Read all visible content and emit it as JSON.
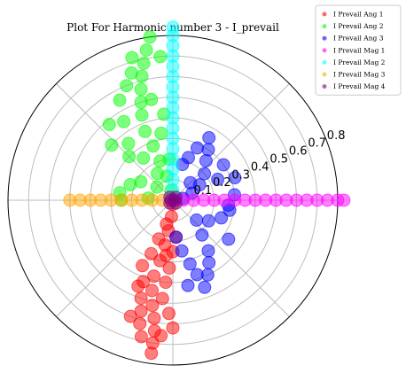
{
  "chart_data": {
    "type": "scatter",
    "subtype": "polar",
    "title": "Plot For Harmonic number 3 - I_prevail",
    "r_ticks": [
      "0.1",
      "0.2",
      "0.3",
      "0.4",
      "0.5",
      "0.6",
      "0.7",
      "0.8"
    ],
    "r_tick_values": [
      0.1,
      0.2,
      0.3,
      0.4,
      0.5,
      0.6,
      0.7,
      0.8
    ],
    "rlim": [
      0,
      0.8
    ],
    "grid": true,
    "legend_position": "top-right",
    "series": [
      {
        "name": "I Prevail Ang 1",
        "color": "#ff0000",
        "points": [
          [
            0.02,
            -93
          ],
          [
            0.08,
            -95
          ],
          [
            0.15,
            -98
          ],
          [
            0.22,
            -100
          ],
          [
            0.3,
            -102
          ],
          [
            0.38,
            -104
          ],
          [
            0.45,
            -103
          ],
          [
            0.52,
            -101
          ],
          [
            0.58,
            -99
          ],
          [
            0.64,
            -98
          ],
          [
            0.7,
            -98
          ],
          [
            0.75,
            -98
          ],
          [
            0.12,
            -105
          ],
          [
            0.2,
            -110
          ],
          [
            0.28,
            -112
          ],
          [
            0.35,
            -115
          ],
          [
            0.42,
            -110
          ],
          [
            0.5,
            -108
          ],
          [
            0.56,
            -106
          ],
          [
            0.62,
            -105
          ],
          [
            0.68,
            -103
          ],
          [
            0.25,
            -90
          ],
          [
            0.33,
            -93
          ],
          [
            0.4,
            -95
          ],
          [
            0.48,
            -96
          ],
          [
            0.55,
            -92
          ],
          [
            0.62,
            -90
          ],
          [
            0.18,
            -85
          ],
          [
            0.27,
            -97
          ],
          [
            0.45,
            -112
          ],
          [
            0.6,
            -110
          ],
          [
            0.66,
            -95
          ]
        ]
      },
      {
        "name": "I Prevail Ang 2",
        "color": "#00ff00",
        "points": [
          [
            0.05,
            100
          ],
          [
            0.12,
            104
          ],
          [
            0.2,
            108
          ],
          [
            0.28,
            110
          ],
          [
            0.36,
            112
          ],
          [
            0.44,
            110
          ],
          [
            0.5,
            108
          ],
          [
            0.56,
            106
          ],
          [
            0.62,
            104
          ],
          [
            0.68,
            102
          ],
          [
            0.74,
            100
          ],
          [
            0.8,
            98
          ],
          [
            0.15,
            120
          ],
          [
            0.25,
            125
          ],
          [
            0.35,
            128
          ],
          [
            0.45,
            122
          ],
          [
            0.55,
            118
          ],
          [
            0.3,
            135
          ],
          [
            0.4,
            138
          ],
          [
            0.48,
            130
          ],
          [
            0.6,
            112
          ],
          [
            0.7,
            95
          ],
          [
            0.2,
            95
          ],
          [
            0.33,
            100
          ],
          [
            0.42,
            96
          ],
          [
            0.5,
            102
          ],
          [
            0.1,
            140
          ],
          [
            0.18,
            150
          ],
          [
            0.22,
            160
          ],
          [
            0.26,
            172
          ],
          [
            0.25,
            180
          ],
          [
            0.12,
            175
          ],
          [
            0.65,
            108
          ],
          [
            0.72,
            106
          ]
        ]
      },
      {
        "name": "I Prevail Ang 3",
        "color": "#0000ff",
        "points": [
          [
            0.05,
            10
          ],
          [
            0.1,
            20
          ],
          [
            0.15,
            30
          ],
          [
            0.2,
            40
          ],
          [
            0.25,
            50
          ],
          [
            0.3,
            55
          ],
          [
            0.35,
            60
          ],
          [
            0.28,
            65
          ],
          [
            0.22,
            70
          ],
          [
            0.18,
            75
          ],
          [
            0.12,
            45
          ],
          [
            0.3,
            35
          ],
          [
            0.32,
            20
          ],
          [
            0.3,
            5
          ],
          [
            0.28,
            -10
          ],
          [
            0.25,
            -20
          ],
          [
            0.2,
            -30
          ],
          [
            0.15,
            -40
          ],
          [
            0.22,
            -50
          ],
          [
            0.3,
            -55
          ],
          [
            0.35,
            -60
          ],
          [
            0.4,
            -65
          ],
          [
            0.45,
            -70
          ],
          [
            0.32,
            -75
          ],
          [
            0.25,
            -80
          ],
          [
            0.18,
            -85
          ],
          [
            0.38,
            -72
          ],
          [
            0.42,
            -80
          ],
          [
            0.33,
            -35
          ],
          [
            0.27,
            -5
          ],
          [
            0.24,
            25
          ]
        ]
      },
      {
        "name": "I Prevail Mag 1",
        "color": "#ff00ff",
        "points": [
          [
            0.05,
            0
          ],
          [
            0.1,
            0
          ],
          [
            0.15,
            0
          ],
          [
            0.2,
            0
          ],
          [
            0.25,
            0
          ],
          [
            0.3,
            0
          ],
          [
            0.35,
            0
          ],
          [
            0.4,
            0
          ],
          [
            0.45,
            0
          ],
          [
            0.5,
            0
          ],
          [
            0.55,
            0
          ],
          [
            0.6,
            0
          ],
          [
            0.65,
            0
          ],
          [
            0.7,
            0
          ],
          [
            0.75,
            0
          ],
          [
            0.8,
            0
          ],
          [
            0.83,
            0
          ]
        ]
      },
      {
        "name": "I Prevail Mag 2",
        "color": "#00ffff",
        "points": [
          [
            0.05,
            90
          ],
          [
            0.1,
            90
          ],
          [
            0.15,
            90
          ],
          [
            0.2,
            90
          ],
          [
            0.25,
            90
          ],
          [
            0.3,
            90
          ],
          [
            0.35,
            90
          ],
          [
            0.4,
            90
          ],
          [
            0.45,
            90
          ],
          [
            0.5,
            90
          ],
          [
            0.55,
            90
          ],
          [
            0.6,
            90
          ],
          [
            0.65,
            90
          ],
          [
            0.7,
            90
          ],
          [
            0.75,
            90
          ],
          [
            0.8,
            90
          ],
          [
            0.84,
            90
          ]
        ]
      },
      {
        "name": "I Prevail Mag 3",
        "color": "#ffa500",
        "points": [
          [
            0.05,
            180
          ],
          [
            0.1,
            180
          ],
          [
            0.15,
            180
          ],
          [
            0.2,
            180
          ],
          [
            0.25,
            180
          ],
          [
            0.3,
            180
          ],
          [
            0.35,
            180
          ],
          [
            0.4,
            180
          ],
          [
            0.45,
            180
          ],
          [
            0.5,
            180
          ]
        ]
      },
      {
        "name": "I Prevail Mag 4",
        "color": "#800080",
        "points": [
          [
            0.01,
            0
          ],
          [
            0.02,
            45
          ],
          [
            0.02,
            135
          ],
          [
            0.02,
            225
          ],
          [
            0.02,
            315
          ],
          [
            0.01,
            180
          ]
        ]
      }
    ]
  }
}
